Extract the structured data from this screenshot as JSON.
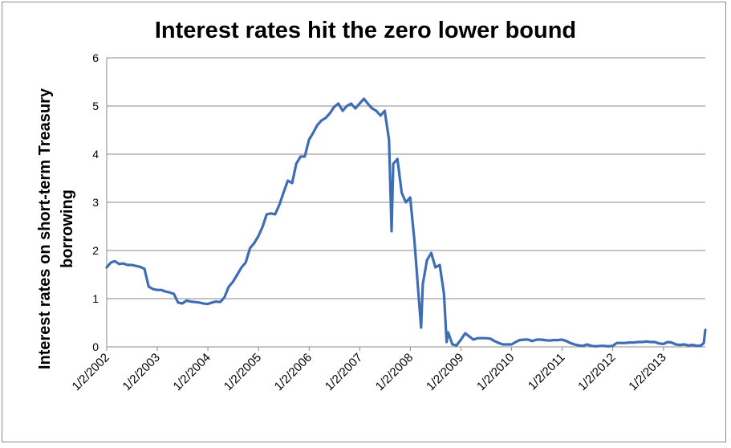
{
  "chart_data": {
    "type": "line",
    "title": "Interest rates hit the zero lower bound",
    "xlabel": "",
    "ylabel": "Interest rates on short-term Treasury borrowing",
    "ylim": [
      0,
      6
    ],
    "yticks": [
      "0",
      "1",
      "2",
      "3",
      "4",
      "5",
      "6"
    ],
    "xticks": [
      "1/2/2002",
      "1/2/2003",
      "1/2/2004",
      "1/2/2005",
      "1/2/2006",
      "1/2/2007",
      "1/2/2008",
      "1/2/2009",
      "1/2/2010",
      "1/2/2011",
      "1/2/2012",
      "1/2/2013"
    ],
    "xlim": [
      "2002-01-02",
      "2013-10-31"
    ],
    "grid": true,
    "legend": "none",
    "line_color": "#3e6db5",
    "series": [
      {
        "x": [
          "2002-01-02",
          "2002-02-01",
          "2002-03-01",
          "2002-04-01",
          "2002-05-01",
          "2002-06-01",
          "2002-07-01",
          "2002-08-01",
          "2002-09-01",
          "2002-10-01",
          "2002-11-01",
          "2002-12-01",
          "2003-01-01",
          "2003-02-01",
          "2003-03-01",
          "2003-04-01",
          "2003-05-01",
          "2003-06-01",
          "2003-07-01",
          "2003-08-01",
          "2003-09-01",
          "2003-10-01",
          "2003-11-01",
          "2003-12-01",
          "2004-01-01",
          "2004-02-01",
          "2004-03-01",
          "2004-04-01",
          "2004-05-01",
          "2004-06-01",
          "2004-07-01",
          "2004-08-01",
          "2004-09-01",
          "2004-10-01",
          "2004-11-01",
          "2004-12-01",
          "2005-01-01",
          "2005-02-01",
          "2005-03-01",
          "2005-04-01",
          "2005-05-01",
          "2005-06-01",
          "2005-07-01",
          "2005-08-01",
          "2005-09-01",
          "2005-10-01",
          "2005-11-01",
          "2005-12-01",
          "2006-01-01",
          "2006-02-01",
          "2006-03-01",
          "2006-04-01",
          "2006-05-01",
          "2006-06-01",
          "2006-07-01",
          "2006-08-01",
          "2006-09-01",
          "2006-10-01",
          "2006-11-01",
          "2006-12-01",
          "2007-01-01",
          "2007-02-01",
          "2007-03-01",
          "2007-04-01",
          "2007-05-01",
          "2007-06-01",
          "2007-07-01",
          "2007-08-01",
          "2007-08-20",
          "2007-09-01",
          "2007-10-01",
          "2007-11-01",
          "2007-12-01",
          "2008-01-01",
          "2008-02-01",
          "2008-03-01",
          "2008-03-20",
          "2008-04-01",
          "2008-05-01",
          "2008-06-01",
          "2008-07-01",
          "2008-08-01",
          "2008-09-01",
          "2008-09-20",
          "2008-10-01",
          "2008-11-01",
          "2008-12-01",
          "2009-01-01",
          "2009-02-01",
          "2009-03-01",
          "2009-04-01",
          "2009-05-01",
          "2009-06-01",
          "2009-07-01",
          "2009-08-01",
          "2009-09-01",
          "2009-10-01",
          "2009-11-01",
          "2009-12-01",
          "2010-01-01",
          "2010-02-01",
          "2010-03-01",
          "2010-04-01",
          "2010-05-01",
          "2010-06-01",
          "2010-07-01",
          "2010-08-01",
          "2010-09-01",
          "2010-10-01",
          "2010-11-01",
          "2010-12-01",
          "2011-01-01",
          "2011-02-01",
          "2011-03-01",
          "2011-04-01",
          "2011-05-01",
          "2011-06-01",
          "2011-07-01",
          "2011-08-01",
          "2011-09-01",
          "2011-10-01",
          "2011-11-01",
          "2011-12-01",
          "2012-01-01",
          "2012-02-01",
          "2012-03-01",
          "2012-04-01",
          "2012-05-01",
          "2012-06-01",
          "2012-07-01",
          "2012-08-01",
          "2012-09-01",
          "2012-10-01",
          "2012-11-01",
          "2012-12-01",
          "2013-01-01",
          "2013-02-01",
          "2013-03-01",
          "2013-04-01",
          "2013-05-01",
          "2013-06-01",
          "2013-07-01",
          "2013-08-01",
          "2013-09-01",
          "2013-10-01",
          "2013-10-20",
          "2013-10-31"
        ],
        "values": [
          1.65,
          1.75,
          1.78,
          1.72,
          1.73,
          1.7,
          1.7,
          1.68,
          1.66,
          1.62,
          1.25,
          1.2,
          1.18,
          1.18,
          1.15,
          1.13,
          1.1,
          0.92,
          0.9,
          0.96,
          0.94,
          0.93,
          0.92,
          0.9,
          0.89,
          0.92,
          0.94,
          0.93,
          1.03,
          1.25,
          1.35,
          1.5,
          1.65,
          1.75,
          2.05,
          2.15,
          2.3,
          2.5,
          2.75,
          2.77,
          2.75,
          2.95,
          3.2,
          3.45,
          3.4,
          3.8,
          3.95,
          3.95,
          4.3,
          4.45,
          4.6,
          4.7,
          4.75,
          4.85,
          4.98,
          5.05,
          4.9,
          5.0,
          5.05,
          4.95,
          5.05,
          5.15,
          5.05,
          4.95,
          4.9,
          4.8,
          4.9,
          4.3,
          2.4,
          3.8,
          3.9,
          3.2,
          3.0,
          3.1,
          2.2,
          1.1,
          0.4,
          1.3,
          1.8,
          1.95,
          1.65,
          1.7,
          1.1,
          0.1,
          0.3,
          0.05,
          0.03,
          0.15,
          0.28,
          0.22,
          0.15,
          0.18,
          0.18,
          0.18,
          0.17,
          0.12,
          0.08,
          0.05,
          0.05,
          0.05,
          0.1,
          0.14,
          0.15,
          0.15,
          0.12,
          0.15,
          0.15,
          0.14,
          0.13,
          0.14,
          0.14,
          0.15,
          0.12,
          0.08,
          0.05,
          0.03,
          0.02,
          0.05,
          0.02,
          0.01,
          0.02,
          0.02,
          0.01,
          0.02,
          0.08,
          0.08,
          0.08,
          0.09,
          0.09,
          0.1,
          0.1,
          0.11,
          0.1,
          0.1,
          0.07,
          0.06,
          0.1,
          0.09,
          0.05,
          0.04,
          0.05,
          0.03,
          0.04,
          0.02,
          0.03,
          0.08,
          0.35
        ]
      }
    ]
  }
}
